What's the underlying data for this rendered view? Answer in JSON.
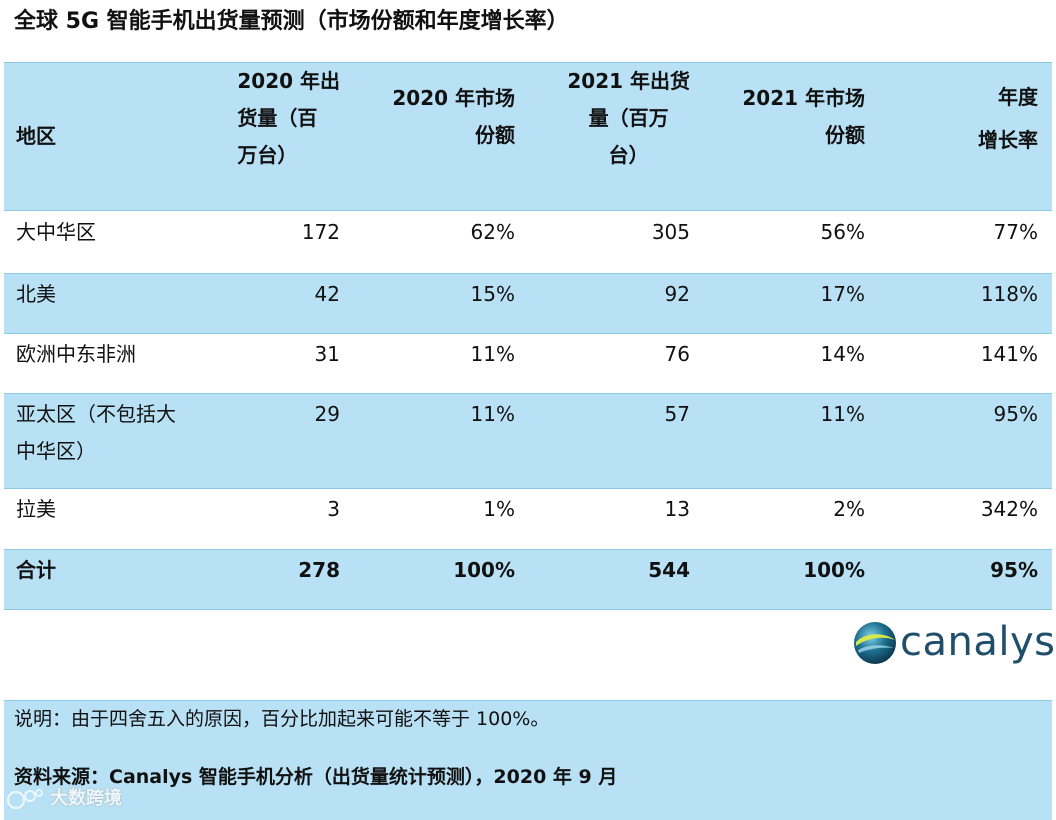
{
  "title": "全球 5G 智能手机出货量预测（市场份额和年度增长率）",
  "table": {
    "headers": {
      "region": "地区",
      "ship2020": [
        "2020 年出",
        "货量（百",
        "万台）"
      ],
      "share2020": [
        "2020 年市场",
        "份额"
      ],
      "ship2021": [
        "2021 年出货",
        "量（百万",
        "台）"
      ],
      "share2021": [
        "2021 年市场",
        "份额"
      ],
      "growth": [
        "年度",
        "增长率"
      ]
    },
    "rows": [
      {
        "region": [
          "大中华区"
        ],
        "ship2020": "172",
        "share2020": "62%",
        "ship2021": "305",
        "share2021": "56%",
        "growth": "77%"
      },
      {
        "region": [
          "北美"
        ],
        "ship2020": "42",
        "share2020": "15%",
        "ship2021": "92",
        "share2021": "17%",
        "growth": "118%"
      },
      {
        "region": [
          "欧洲中东非洲"
        ],
        "ship2020": "31",
        "share2020": "11%",
        "ship2021": "76",
        "share2021": "14%",
        "growth": "141%"
      },
      {
        "region": [
          "亚太区（不包括大",
          "中华区）"
        ],
        "ship2020": "29",
        "share2020": "11%",
        "ship2021": "57",
        "share2021": "11%",
        "growth": "95%"
      },
      {
        "region": [
          "拉美"
        ],
        "ship2020": "3",
        "share2020": "1%",
        "ship2021": "13",
        "share2021": "2%",
        "growth": "342%"
      }
    ],
    "total": {
      "region": "合计",
      "ship2020": "278",
      "share2020": "100%",
      "ship2021": "544",
      "share2021": "100%",
      "growth": "95%"
    }
  },
  "logo": {
    "text": "canalys",
    "icon": "canalys-globe-icon"
  },
  "note": "说明：由于四舍五入的原因，百分比加起来可能不等于 100%。",
  "source": "资料来源：Canalys 智能手机分析（出货量统计预测），2020 年 9 月",
  "watermark": {
    "text": "大数跨境",
    "icon": "watermark-logo-icon"
  },
  "colors": {
    "band": "#b9e1f5",
    "rule": "#8fc9e6",
    "logo": "#1f4f6b"
  }
}
